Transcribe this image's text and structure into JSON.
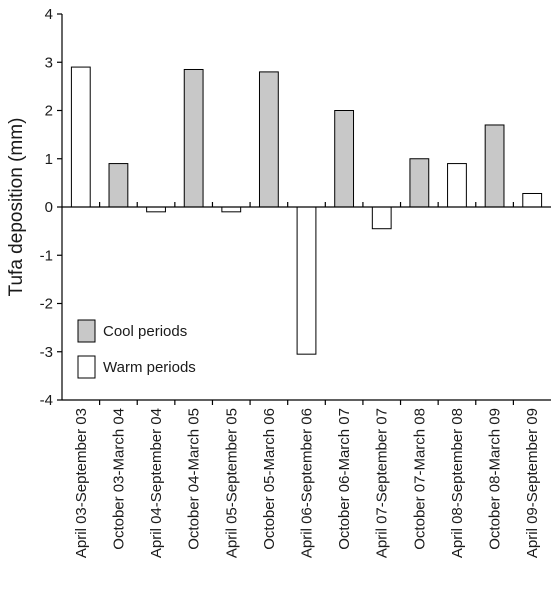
{
  "chart_data": {
    "type": "bar",
    "title": "",
    "xlabel": "",
    "ylabel": "Tufa deposition (mm)",
    "ylim": [
      -4,
      4
    ],
    "yticks": [
      -4,
      -3,
      -2,
      -1,
      0,
      1,
      2,
      3,
      4
    ],
    "grid": false,
    "legend_position": "bottom-left",
    "categories": [
      "April 03-September 03",
      "October 03-March 04",
      "April 04-September 04",
      "October 04-March 05",
      "April 05-September 05",
      "October 05-March 06",
      "April 06-September 06",
      "October 06-March 07",
      "April 07-September 07",
      "October 07-March 08",
      "April 08-September 08",
      "October 08-March 09",
      "April 09-September 09"
    ],
    "values": [
      2.9,
      0.9,
      -0.1,
      2.85,
      -0.1,
      2.8,
      -3.05,
      2.0,
      -0.45,
      1.0,
      0.9,
      1.7,
      0.28
    ],
    "bar_period": [
      "warm",
      "cool",
      "warm",
      "cool",
      "warm",
      "cool",
      "warm",
      "cool",
      "warm",
      "cool",
      "warm",
      "cool",
      "warm"
    ],
    "legend": [
      {
        "key": "cool",
        "label": "Cool periods",
        "color": "#c8c8c8"
      },
      {
        "key": "warm",
        "label": "Warm periods",
        "color": "#ffffff"
      }
    ]
  }
}
